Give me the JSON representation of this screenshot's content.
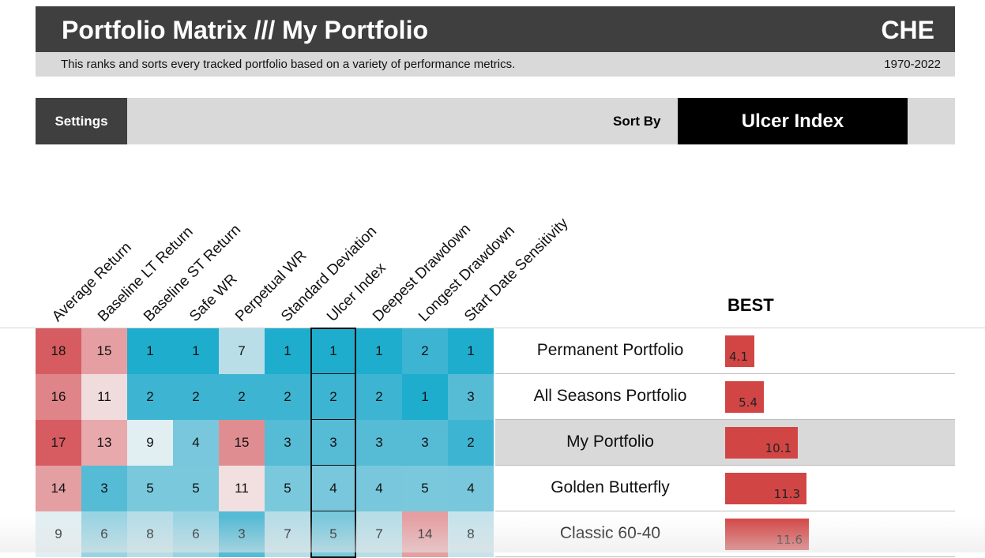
{
  "header": {
    "title": "Portfolio Matrix /// My Portfolio",
    "country": "CHE",
    "description": "This ranks and sorts every tracked portfolio based on a variety of performance metrics.",
    "years": "1970-2022"
  },
  "settings_bar": {
    "settings_label": "Settings",
    "sort_by_label": "Sort By",
    "sort_value": "Ulcer Index"
  },
  "columns": [
    "Average Return",
    "Baseline LT Return",
    "Baseline ST Return",
    "Safe WR",
    "Perpetual WR",
    "Standard Deviation",
    "Ulcer Index",
    "Deepest Drawdown",
    "Longest Drawdown",
    "Start Date Sensitivity"
  ],
  "best_label": "BEST",
  "rows": [
    {
      "name": "Permanent Portfolio",
      "ranks": [
        "18",
        "15",
        "1",
        "1",
        "7",
        "1",
        "1",
        "1",
        "2",
        "1"
      ],
      "value": "4.1",
      "highlight": false
    },
    {
      "name": "All Seasons Portfolio",
      "ranks": [
        "16",
        "11",
        "2",
        "2",
        "2",
        "2",
        "2",
        "2",
        "1",
        "3"
      ],
      "value": "5.4",
      "highlight": false
    },
    {
      "name": "My Portfolio",
      "ranks": [
        "17",
        "13",
        "9",
        "4",
        "15",
        "3",
        "3",
        "3",
        "3",
        "2"
      ],
      "value": "10.1",
      "highlight": true
    },
    {
      "name": "Golden Butterfly",
      "ranks": [
        "14",
        "3",
        "5",
        "5",
        "11",
        "5",
        "4",
        "4",
        "5",
        "4"
      ],
      "value": "11.3",
      "highlight": false
    },
    {
      "name": "Classic 60-40",
      "ranks": [
        "9",
        "6",
        "8",
        "6",
        "3",
        "7",
        "5",
        "7",
        "14",
        "8"
      ],
      "value": "11.6",
      "highlight": false
    }
  ],
  "colors": {
    "header_bg": "#3f3f3f",
    "bar": "#d24545",
    "cell_fills": [
      [
        "#d65c61",
        "#e59fa2",
        "#1fadce",
        "#1fadce",
        "#b9dee8",
        "#1fadce",
        "#1fadce",
        "#1fadce",
        "#3db4d2",
        "#1fadce"
      ],
      [
        "#df8489",
        "#f1dcdd",
        "#3db4d2",
        "#3db4d2",
        "#3db4d2",
        "#3db4d2",
        "#3db4d2",
        "#3db4d2",
        "#1fadce",
        "#56bbd5"
      ],
      [
        "#d65c61",
        "#e8a9ac",
        "#e1eff2",
        "#78c7dc",
        "#e08d91",
        "#56bbd5",
        "#56bbd5",
        "#56bbd5",
        "#56bbd5",
        "#3db4d2"
      ],
      [
        "#e49fa2",
        "#56bbd5",
        "#7ac8dc",
        "#7ac8dc",
        "#f2dfe0",
        "#7ac8dc",
        "#78c7dc",
        "#78c7dc",
        "#7ac8dc",
        "#78c7dc"
      ],
      [
        "#e2eff2",
        "#9ad4e3",
        "#b7dde7",
        "#9ad4e3",
        "#56bbd5",
        "#b7dde7",
        "#7ac8dc",
        "#b7dde7",
        "#e59fa2",
        "#c6e3eb"
      ]
    ]
  }
}
